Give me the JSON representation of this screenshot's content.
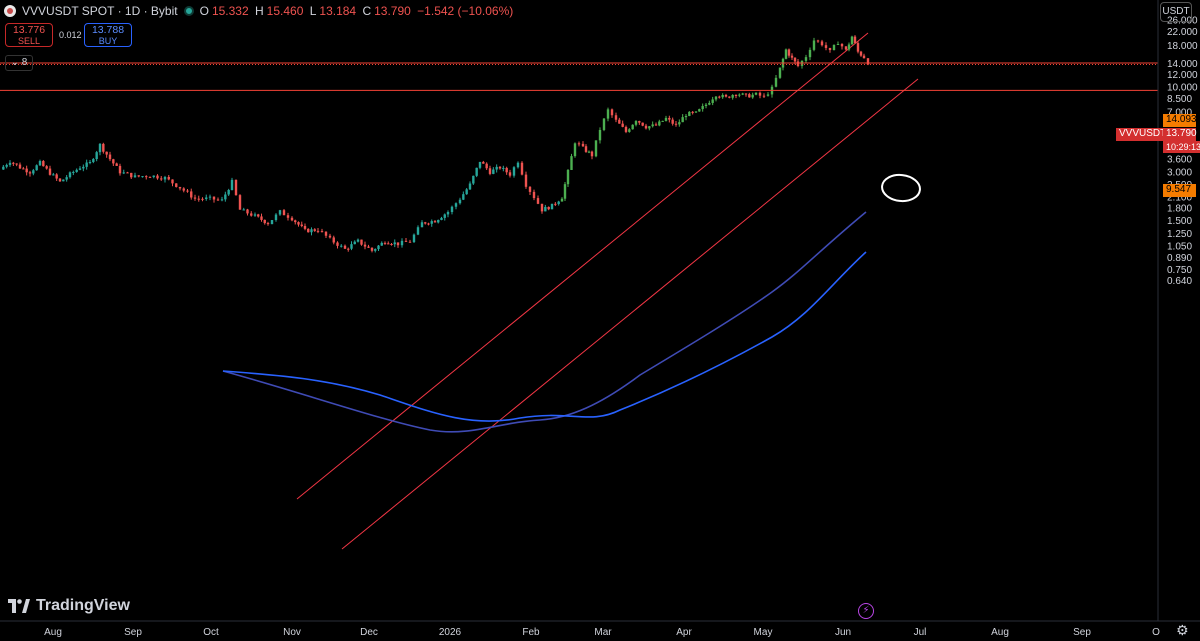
{
  "header": {
    "title": "VVVUSDT SPOT · 1D · Bybit",
    "open_label": "O",
    "open": "15.332",
    "high_label": "H",
    "high": "15.460",
    "low_label": "L",
    "low": "13.184",
    "close_label": "C",
    "close": "13.790",
    "change": "−1.542 (−10.06%)"
  },
  "trade": {
    "sell_price": "13.776",
    "sell_label": "SELL",
    "spread": "0.012",
    "buy_price": "13.788",
    "buy_label": "BUY"
  },
  "indicators_toggle": "8",
  "currency": "USDT",
  "watermark": "TradingView",
  "price_axis": {
    "scale": "log",
    "ticks": [
      "26.000",
      "22.000",
      "18.000",
      "14.000",
      "12.000",
      "10.000",
      "8.500",
      "7.000",
      "6.000",
      "5.000",
      "4.200",
      "3.600",
      "3.000",
      "2.500",
      "2.100",
      "1.800",
      "1.500",
      "1.250",
      "1.050",
      "0.890",
      "0.750",
      "0.640"
    ]
  },
  "time_axis": {
    "ticks": [
      "Aug",
      "Sep",
      "Oct",
      "Nov",
      "Dec",
      "2026",
      "Feb",
      "Mar",
      "Apr",
      "May",
      "Jun",
      "Jul",
      "Aug",
      "Sep",
      "O"
    ]
  },
  "price_badges": {
    "upper_level": "14.093",
    "symbol": "VVVUSDT",
    "last_price": "13.790",
    "countdown": "10:29:13",
    "lower_level": "9.547"
  },
  "colors": {
    "up": "#26a69a",
    "up_bright": "#4caf50",
    "down": "#ef5350",
    "level_line": "#f44336",
    "channel": "#f23645",
    "ma_fast": "#3f4bb5",
    "ma_slow": "#2962ff",
    "background": "#000000"
  },
  "chart_data": {
    "type": "candlestick",
    "symbol": "VVVUSDT",
    "interval": "1D",
    "exchange": "Bybit",
    "y_scale": "log",
    "ylim": [
      0.61,
      30
    ],
    "price_levels": [
      14.093,
      9.547
    ],
    "last_price": 13.79,
    "close_path": [
      {
        "x": 0,
        "y": 3.1
      },
      {
        "x": 10,
        "y": 3.5
      },
      {
        "x": 20,
        "y": 3.2
      },
      {
        "x": 30,
        "y": 3.0
      },
      {
        "x": 40,
        "y": 3.4
      },
      {
        "x": 50,
        "y": 2.95
      },
      {
        "x": 60,
        "y": 2.6
      },
      {
        "x": 70,
        "y": 2.9
      },
      {
        "x": 80,
        "y": 3.2
      },
      {
        "x": 90,
        "y": 3.4
      },
      {
        "x": 100,
        "y": 4.4
      },
      {
        "x": 110,
        "y": 3.6
      },
      {
        "x": 120,
        "y": 3.0
      },
      {
        "x": 135,
        "y": 2.8
      },
      {
        "x": 150,
        "y": 2.85
      },
      {
        "x": 165,
        "y": 2.75
      },
      {
        "x": 180,
        "y": 2.4
      },
      {
        "x": 195,
        "y": 2.05
      },
      {
        "x": 210,
        "y": 2.05
      },
      {
        "x": 222,
        "y": 2.0
      },
      {
        "x": 232,
        "y": 2.6
      },
      {
        "x": 240,
        "y": 1.75
      },
      {
        "x": 255,
        "y": 1.6
      },
      {
        "x": 268,
        "y": 1.45
      },
      {
        "x": 280,
        "y": 1.7
      },
      {
        "x": 292,
        "y": 1.55
      },
      {
        "x": 305,
        "y": 1.3
      },
      {
        "x": 318,
        "y": 1.32
      },
      {
        "x": 330,
        "y": 1.15
      },
      {
        "x": 345,
        "y": 1.0
      },
      {
        "x": 358,
        "y": 1.12
      },
      {
        "x": 372,
        "y": 0.98
      },
      {
        "x": 385,
        "y": 1.12
      },
      {
        "x": 398,
        "y": 1.08
      },
      {
        "x": 410,
        "y": 1.12
      },
      {
        "x": 422,
        "y": 1.45
      },
      {
        "x": 435,
        "y": 1.5
      },
      {
        "x": 448,
        "y": 1.7
      },
      {
        "x": 460,
        "y": 2.05
      },
      {
        "x": 470,
        "y": 2.5
      },
      {
        "x": 480,
        "y": 3.5
      },
      {
        "x": 490,
        "y": 3.0
      },
      {
        "x": 500,
        "y": 3.2
      },
      {
        "x": 510,
        "y": 2.9
      },
      {
        "x": 518,
        "y": 3.5
      },
      {
        "x": 526,
        "y": 2.5
      },
      {
        "x": 534,
        "y": 2.1
      },
      {
        "x": 542,
        "y": 1.75
      },
      {
        "x": 552,
        "y": 1.85
      },
      {
        "x": 562,
        "y": 2.1
      },
      {
        "x": 568,
        "y": 3.0
      },
      {
        "x": 575,
        "y": 4.6
      },
      {
        "x": 583,
        "y": 4.2
      },
      {
        "x": 592,
        "y": 3.8
      },
      {
        "x": 600,
        "y": 5.5
      },
      {
        "x": 608,
        "y": 7.2
      },
      {
        "x": 616,
        "y": 6.2
      },
      {
        "x": 626,
        "y": 5.3
      },
      {
        "x": 636,
        "y": 6.3
      },
      {
        "x": 646,
        "y": 5.7
      },
      {
        "x": 656,
        "y": 5.8
      },
      {
        "x": 666,
        "y": 6.4
      },
      {
        "x": 676,
        "y": 5.8
      },
      {
        "x": 686,
        "y": 6.8
      },
      {
        "x": 696,
        "y": 6.9
      },
      {
        "x": 706,
        "y": 7.8
      },
      {
        "x": 716,
        "y": 9.0
      },
      {
        "x": 726,
        "y": 8.6
      },
      {
        "x": 736,
        "y": 9.2
      },
      {
        "x": 746,
        "y": 8.8
      },
      {
        "x": 756,
        "y": 9.0
      },
      {
        "x": 764,
        "y": 8.7
      },
      {
        "x": 772,
        "y": 9.8
      },
      {
        "x": 780,
        "y": 13.0
      },
      {
        "x": 786,
        "y": 17.0
      },
      {
        "x": 792,
        "y": 15.0
      },
      {
        "x": 798,
        "y": 13.5
      },
      {
        "x": 806,
        "y": 15.5
      },
      {
        "x": 814,
        "y": 19.5
      },
      {
        "x": 822,
        "y": 18.5
      },
      {
        "x": 830,
        "y": 16.5
      },
      {
        "x": 838,
        "y": 19.0
      },
      {
        "x": 846,
        "y": 16.8
      },
      {
        "x": 852,
        "y": 20.5
      },
      {
        "x": 858,
        "y": 16.5
      },
      {
        "x": 864,
        "y": 15.3
      },
      {
        "x": 868,
        "y": 13.79
      }
    ]
  }
}
